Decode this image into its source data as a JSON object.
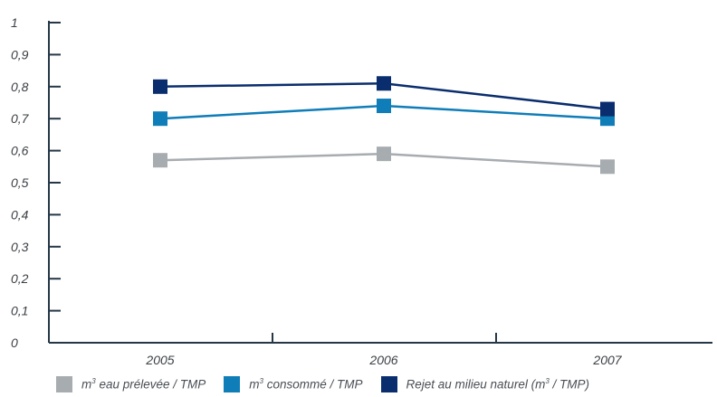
{
  "chart_data": {
    "type": "line",
    "categories": [
      "2005",
      "2006",
      "2007"
    ],
    "ylim": [
      0,
      1
    ],
    "yticks": [
      "0",
      "0,1",
      "0,2",
      "0,3",
      "0,4",
      "0,5",
      "0,6",
      "0,7",
      "0,8",
      "0,9",
      "1"
    ],
    "series": [
      {
        "name": "m³ eau prélevée / TMP",
        "values": [
          0.57,
          0.59,
          0.55
        ],
        "color": "#a7acb0"
      },
      {
        "name": "m³ consommé / TMP",
        "values": [
          0.7,
          0.74,
          0.7
        ],
        "color": "#0f7db8"
      },
      {
        "name": "Rejet au milieu naturel (m³ / TMP)",
        "values": [
          0.8,
          0.81,
          0.73
        ],
        "color": "#0a2d6e"
      }
    ],
    "axis_color": "#253746"
  },
  "legend": {
    "items": [
      {
        "prefix": "m",
        "sup": "3",
        "suffix": " eau prélevée / TMP",
        "color": "#a7acb0"
      },
      {
        "prefix": "m",
        "sup": "3",
        "suffix": " consommé / TMP",
        "color": "#0f7db8"
      },
      {
        "prefix": "Rejet au milieu naturel (m",
        "sup": "3",
        "suffix": " / TMP)",
        "color": "#0a2d6e"
      }
    ]
  }
}
